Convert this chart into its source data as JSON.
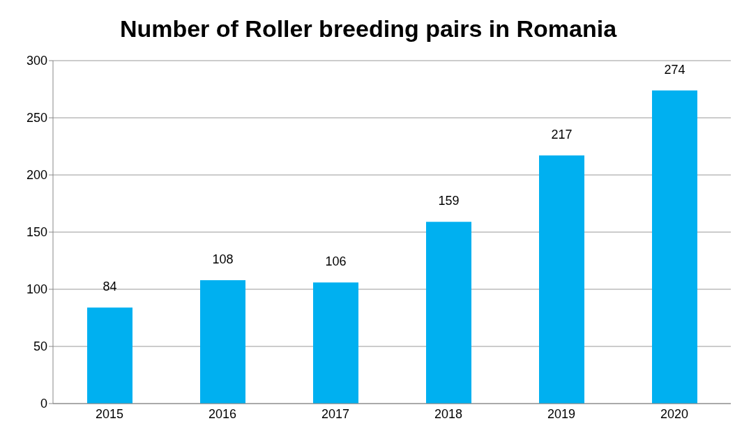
{
  "chart_data": {
    "type": "bar",
    "title": "Number of Roller breeding pairs in Romania",
    "categories": [
      "2015",
      "2016",
      "2017",
      "2018",
      "2019",
      "2020"
    ],
    "values": [
      84,
      108,
      106,
      159,
      217,
      274
    ],
    "color": "#00b0f0",
    "ylim": [
      0,
      300
    ],
    "yticks": [
      0,
      50,
      100,
      150,
      200,
      250,
      300
    ],
    "grid": "y",
    "data_labels": true
  }
}
